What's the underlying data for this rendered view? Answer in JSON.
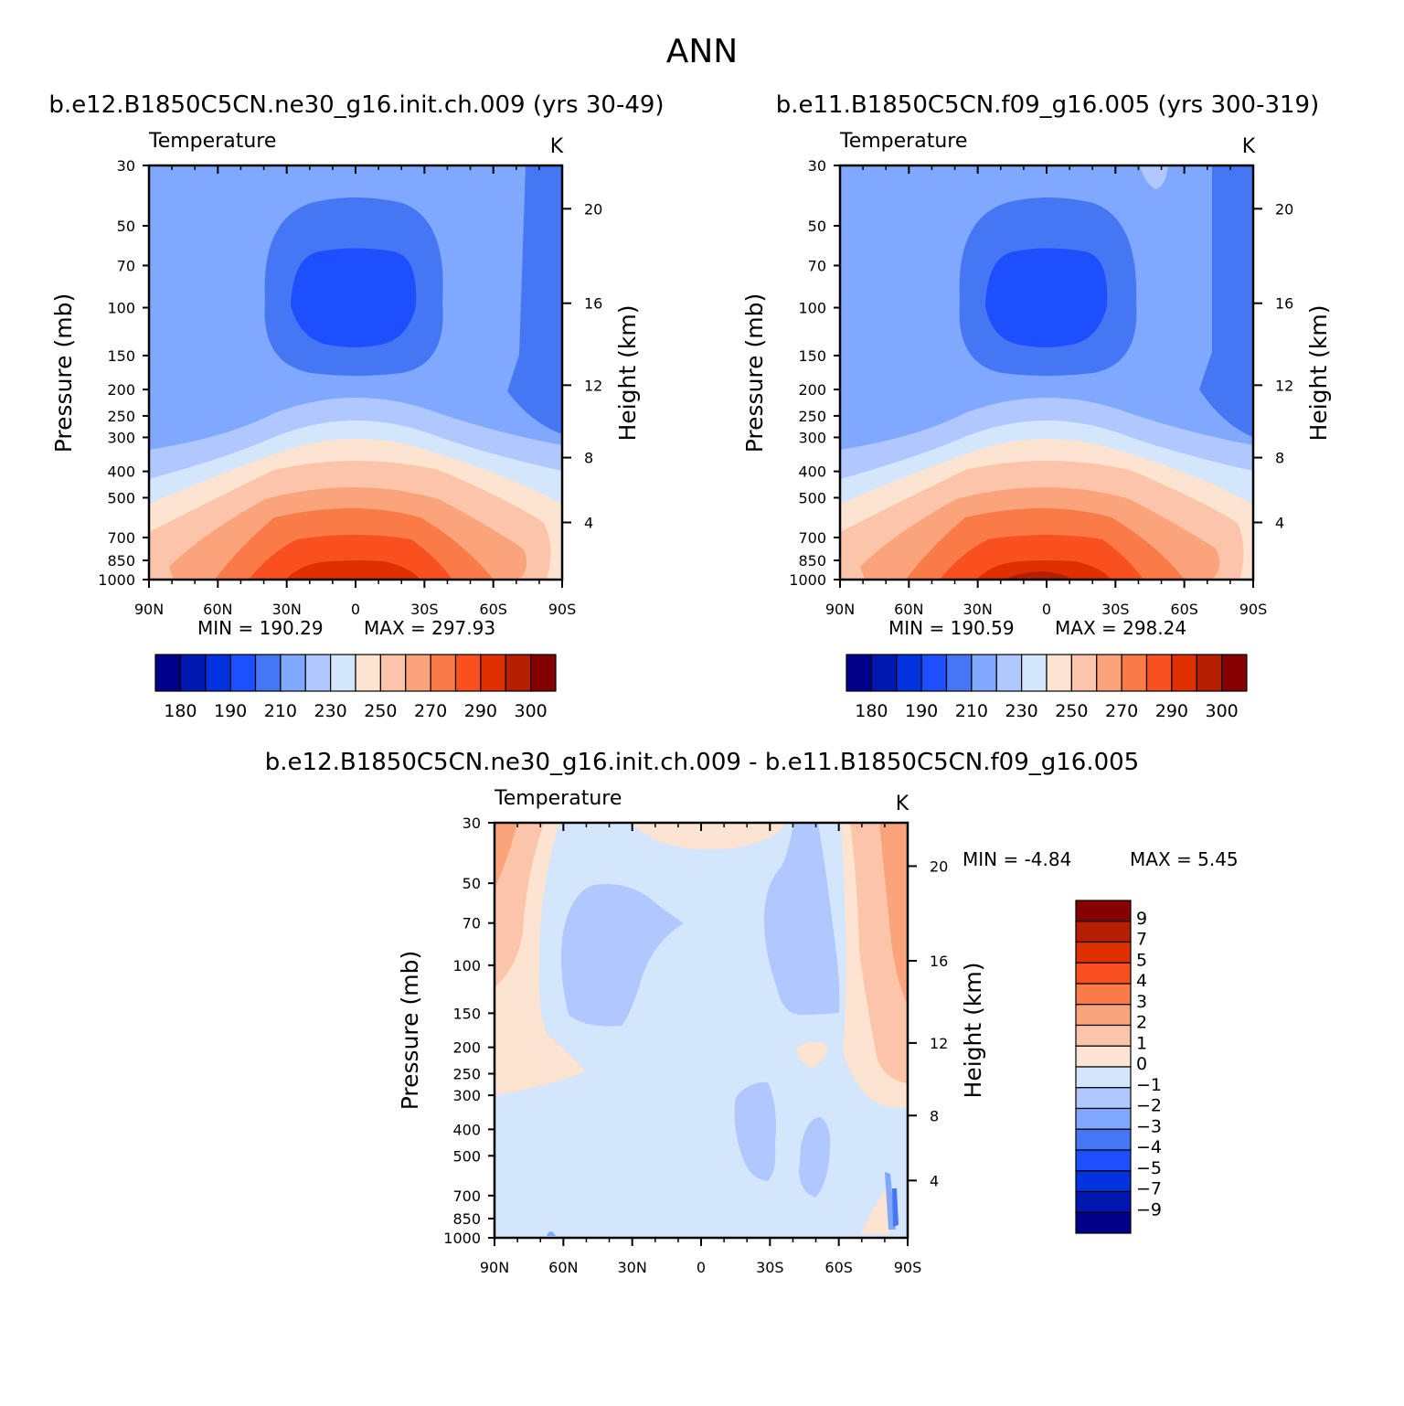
{
  "page_title": "ANN",
  "chart_data": [
    {
      "type": "heatmap",
      "title": "b.e12.B1850C5CN.ne30_g16.init.ch.009 (yrs 30-49)",
      "variable": "Temperature",
      "units": "K",
      "ylabel": "Pressure (mb)",
      "ylabel_right": "Height (km)",
      "x_ticks": [
        "90N",
        "60N",
        "30N",
        "0",
        "30S",
        "60S",
        "90S"
      ],
      "y_ticks": [
        30,
        50,
        70,
        100,
        150,
        200,
        250,
        300,
        400,
        500,
        700,
        850,
        1000
      ],
      "height_ticks": [
        4,
        8,
        12,
        16,
        20
      ],
      "ylim": [
        1000,
        30
      ],
      "min_label": "MIN = 190.29",
      "max_label": "MAX = 297.93",
      "min": 190.29,
      "max": 297.93,
      "colorbar_labels": [
        "180",
        "190",
        "210",
        "230",
        "250",
        "270",
        "290",
        "300"
      ]
    },
    {
      "type": "heatmap",
      "title": "b.e11.B1850C5CN.f09_g16.005 (yrs 300-319)",
      "variable": "Temperature",
      "units": "K",
      "ylabel": "Pressure (mb)",
      "ylabel_right": "Height (km)",
      "x_ticks": [
        "90N",
        "60N",
        "30N",
        "0",
        "30S",
        "60S",
        "90S"
      ],
      "y_ticks": [
        30,
        50,
        70,
        100,
        150,
        200,
        250,
        300,
        400,
        500,
        700,
        850,
        1000
      ],
      "height_ticks": [
        4,
        8,
        12,
        16,
        20
      ],
      "ylim": [
        1000,
        30
      ],
      "min_label": "MIN = 190.59",
      "max_label": "MAX = 298.24",
      "min": 190.59,
      "max": 298.24,
      "colorbar_labels": [
        "180",
        "190",
        "210",
        "230",
        "250",
        "270",
        "290",
        "300"
      ]
    },
    {
      "type": "heatmap",
      "title": "b.e12.B1850C5CN.ne30_g16.init.ch.009 - b.e11.B1850C5CN.f09_g16.005",
      "variable": "Temperature",
      "units": "K",
      "ylabel": "Pressure (mb)",
      "ylabel_right": "Height (km)",
      "x_ticks": [
        "90N",
        "60N",
        "30N",
        "0",
        "30S",
        "60S",
        "90S"
      ],
      "y_ticks": [
        30,
        50,
        70,
        100,
        150,
        200,
        250,
        300,
        400,
        500,
        700,
        850,
        1000
      ],
      "height_ticks": [
        4,
        8,
        12,
        16,
        20
      ],
      "ylim": [
        1000,
        30
      ],
      "min_label": "MIN = -4.84",
      "max_label": "MAX = 5.45",
      "min": -4.84,
      "max": 5.45,
      "colorbar_labels": [
        "9",
        "7",
        "5",
        "4",
        "3",
        "2",
        "1",
        "0",
        "-1",
        "-2",
        "-3",
        "-4",
        "-5",
        "-7",
        "-9"
      ]
    }
  ],
  "colors": {
    "temp_scale": [
      "#00008a",
      "#0018b0",
      "#0033dd",
      "#1e4fff",
      "#4577f5",
      "#80a8ff",
      "#b0c8ff",
      "#d4e6fc",
      "#fde4d0",
      "#fcc4a8",
      "#fba47c",
      "#fa7a48",
      "#fa5020",
      "#e03000",
      "#b51f00",
      "#870000"
    ],
    "diff_scale": [
      "#870000",
      "#b51f00",
      "#e03000",
      "#fa5020",
      "#fa7a48",
      "#fba47c",
      "#fcc4a8",
      "#fde4d0",
      "#d4e6fc",
      "#b0c8ff",
      "#80a8ff",
      "#4577f5",
      "#1e4fff",
      "#0033dd",
      "#0018b0",
      "#00008a"
    ]
  }
}
